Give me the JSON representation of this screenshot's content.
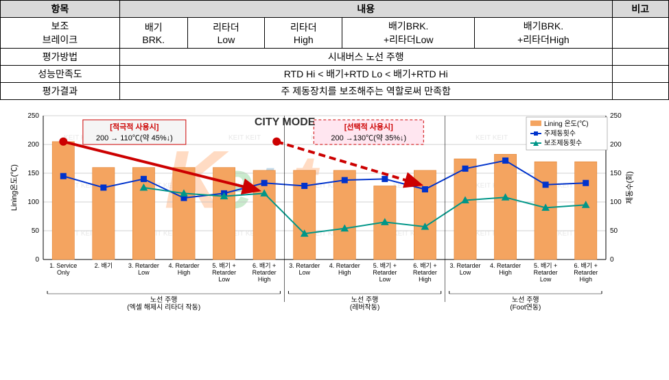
{
  "table": {
    "header": {
      "item": "항목",
      "content": "내용",
      "note": "비고"
    },
    "row_aux": {
      "label": "보조\n브레이크",
      "c1": "배기\nBRK.",
      "c2": "리타더\nLow",
      "c3": "리타더\nHigh",
      "c4": "배기BRK.\n+리타더Low",
      "c5": "배기BRK.\n+리타더High"
    },
    "row_method": {
      "label": "평가방법",
      "value": "시내버스 노선 주행"
    },
    "row_satis": {
      "label": "성능만족도",
      "value": "RTD Hi < 배기+RTD Lo < 배기+RTD Hi"
    },
    "row_result": {
      "label": "평가결과",
      "value": "주 제동장치를 보조해주는 역할로써 만족함"
    }
  },
  "chart": {
    "title": "CITY MODE",
    "left_axis_label": "Lining온도(℃)",
    "right_axis_label": "제동수(회)",
    "y_left": {
      "min": 0,
      "max": 250,
      "step": 50
    },
    "y_right": {
      "min": 0,
      "max": 250,
      "step": 50
    },
    "categories": [
      "1. Service\nOnly",
      "2. 배기",
      "3. Retarder\nLow",
      "4. Retarder\nHigh",
      "5. 배기 +\nRetarder\nLow",
      "6. 배기 +\nRetarder\nHigh",
      "3. Retarder\nLow",
      "4. Retarder\nHigh",
      "5. 배기 +\nRetarder\nLow",
      "6. 배기 +\nRetarder\nHigh",
      "3. Retarder\nLow",
      "4. Retarder\nHigh",
      "5. 배기 +\nRetarder\nLow",
      "6. 배기 +\nRetarder\nHigh"
    ],
    "bars": [
      205,
      160,
      160,
      160,
      160,
      155,
      155,
      155,
      128,
      155,
      175,
      183,
      170,
      170
    ],
    "line_blue": [
      145,
      125,
      140,
      107,
      115,
      133,
      128,
      138,
      140,
      122,
      158,
      172,
      130,
      133
    ],
    "line_teal": [
      null,
      null,
      125,
      115,
      110,
      115,
      45,
      54,
      65,
      57,
      103,
      108,
      90,
      95
    ],
    "bar_color": "#f4a460",
    "blue": "#0033cc",
    "teal": "#009688",
    "legend": {
      "bars": "Lining 온도(℃)",
      "blue": "주제동횟수",
      "teal": "보조제동횟수"
    },
    "callouts": {
      "left": {
        "hdr": "[적극적 사용시]",
        "txt": "200 → 110℃(약 45%↓)"
      },
      "right": {
        "hdr": "[선택적 사용시]",
        "txt": "200 →130℃(약 35%↓)"
      }
    },
    "groups": [
      {
        "label": "노선 주행",
        "sub": "(엑셀 해제시 리타더 작동)",
        "span": [
          0,
          5
        ]
      },
      {
        "label": "노선 주행",
        "sub": "(레버작동)",
        "span": [
          6,
          9
        ]
      },
      {
        "label": "노선 주행",
        "sub": "(Foot연동)",
        "span": [
          10,
          13
        ]
      }
    ],
    "watermark": "Keit"
  }
}
